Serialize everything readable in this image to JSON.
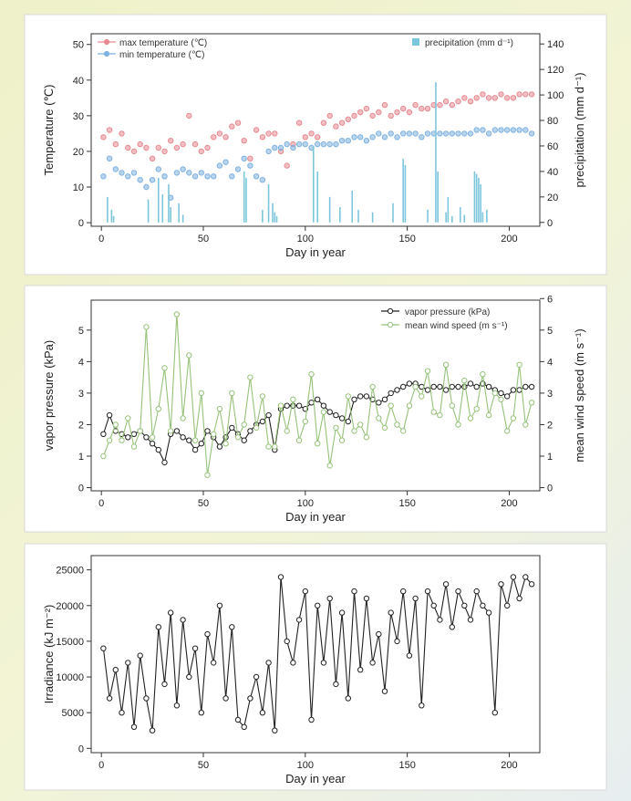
{
  "colors": {
    "max_temperature": "#e78a93",
    "min_temperature": "#7fb2e0",
    "precipitation": "#7cc6dc",
    "vapor_pressure": "#222222",
    "wind_speed": "#97c27a",
    "irradiance": "#222222",
    "panel_bg": "#ffffff"
  },
  "chart_data": [
    {
      "type": "line",
      "xlabel": "Day in year",
      "ylabel": "Temperature (℃)",
      "ylabel_right": "precipitation (mm d⁻¹)",
      "xlim": [
        -5,
        215
      ],
      "ylim": [
        -1,
        53
      ],
      "ylim_right": [
        -3,
        148
      ],
      "x_ticks": [
        0,
        50,
        100,
        150,
        200
      ],
      "y_ticks": [
        0,
        10,
        20,
        30,
        40,
        50
      ],
      "y_ticks_right": [
        0,
        20,
        40,
        60,
        80,
        100,
        120,
        140
      ],
      "legend": {
        "left": [
          "max temperature (℃)",
          "min temperature (℃)"
        ],
        "right": [
          "precipitation (mm d⁻¹)"
        ]
      },
      "series": [
        {
          "name": "max temperature (℃)",
          "axis": "left",
          "style": "points",
          "x_start": 1,
          "x_step": 3,
          "values": [
            24,
            26,
            22,
            25,
            21,
            20,
            22,
            21,
            18,
            21,
            20,
            23,
            21,
            22,
            30,
            22,
            20,
            21,
            24,
            25,
            24,
            27,
            28,
            23,
            18,
            26,
            24,
            25,
            25,
            20,
            16,
            22,
            28,
            24,
            25,
            24,
            28,
            30,
            27,
            28,
            29,
            30,
            31,
            32,
            30,
            31,
            33,
            30,
            31,
            32,
            31,
            33,
            32,
            32,
            33,
            33,
            34,
            33,
            34,
            35,
            34,
            35,
            36,
            35,
            35,
            36,
            35,
            35,
            36,
            36,
            36
          ]
        },
        {
          "name": "min temperature (℃)",
          "axis": "left",
          "style": "points",
          "x_start": 1,
          "x_step": 3,
          "values": [
            13,
            18,
            15,
            14,
            13,
            14,
            12,
            10,
            12,
            15,
            13,
            7,
            14,
            15,
            14,
            13,
            14,
            13,
            13,
            16,
            17,
            13,
            15,
            18,
            16,
            13,
            12,
            20,
            21,
            21,
            22,
            21,
            22,
            22,
            21,
            22,
            22,
            22,
            22,
            23,
            23,
            24,
            24,
            23,
            24,
            25,
            24,
            25,
            24,
            25,
            25,
            25,
            24,
            25,
            25,
            25,
            25,
            25,
            25,
            25,
            25,
            26,
            26,
            25,
            26,
            26,
            26,
            26,
            26,
            26,
            25
          ]
        },
        {
          "name": "precipitation (mm d⁻¹)",
          "axis": "right",
          "style": "bars",
          "x": [
            3,
            5,
            6,
            23,
            28,
            30,
            33,
            34,
            38,
            40,
            70,
            71,
            79,
            82,
            84,
            85,
            86,
            104,
            106,
            112,
            117,
            123,
            126,
            133,
            143,
            148,
            149,
            160,
            164,
            165,
            169,
            170,
            172,
            176,
            178,
            183,
            184,
            185,
            186,
            187,
            189
          ],
          "values": [
            20,
            10,
            5,
            18,
            35,
            22,
            30,
            12,
            15,
            6,
            40,
            35,
            10,
            30,
            15,
            8,
            5,
            60,
            40,
            20,
            12,
            25,
            10,
            8,
            15,
            50,
            45,
            10,
            110,
            40,
            8,
            20,
            5,
            12,
            6,
            40,
            38,
            35,
            30,
            8,
            10
          ]
        }
      ]
    },
    {
      "type": "line",
      "xlabel": "Day in year",
      "ylabel": "vapor pressure (kPa)",
      "ylabel_right": "mean wind speed (m s⁻¹)",
      "xlim": [
        -5,
        215
      ],
      "ylim": [
        -0.1,
        5.95
      ],
      "ylim_right": [
        -0.1,
        5.95
      ],
      "x_ticks": [
        0,
        50,
        100,
        150,
        200
      ],
      "y_ticks": [
        0,
        1,
        2,
        3,
        4,
        5
      ],
      "y_ticks_right": [
        0,
        1,
        2,
        3,
        4,
        5,
        6
      ],
      "legend": {
        "right": [
          "vapor pressure (kPa)",
          "mean wind speed (m s⁻¹)"
        ]
      },
      "series": [
        {
          "name": "vapor pressure (kPa)",
          "axis": "left",
          "style": "line-points",
          "x_start": 1,
          "x_step": 3,
          "values": [
            1.7,
            2.3,
            1.8,
            1.7,
            1.6,
            1.7,
            1.8,
            1.6,
            1.4,
            1.2,
            0.8,
            1.7,
            1.8,
            1.6,
            1.5,
            1.2,
            1.4,
            1.8,
            1.6,
            1.3,
            1.6,
            1.9,
            1.7,
            1.5,
            1.8,
            2.0,
            2.1,
            2.3,
            1.2,
            2.5,
            2.6,
            2.6,
            2.6,
            2.5,
            2.7,
            2.8,
            2.6,
            2.4,
            2.3,
            2.2,
            2.1,
            2.8,
            2.9,
            2.9,
            2.8,
            2.7,
            2.8,
            3.0,
            3.1,
            3.2,
            3.3,
            3.3,
            3.2,
            3.1,
            3.2,
            3.2,
            3.1,
            3.2,
            3.2,
            3.2,
            3.3,
            3.2,
            3.3,
            3.2,
            3.1,
            3.0,
            2.9,
            3.1,
            3.1,
            3.2,
            3.2
          ]
        },
        {
          "name": "mean wind speed (m s⁻¹)",
          "axis": "right",
          "style": "line-points",
          "x_start": 1,
          "x_step": 3,
          "values": [
            1.0,
            1.5,
            2.0,
            1.5,
            2.2,
            1.3,
            1.8,
            5.1,
            1.6,
            2.5,
            3.8,
            1.8,
            5.5,
            2.2,
            4.2,
            1.5,
            3.0,
            0.4,
            1.7,
            2.5,
            1.4,
            3.0,
            1.6,
            2.0,
            3.5,
            1.9,
            2.9,
            1.3,
            1.3,
            2.6,
            1.8,
            2.8,
            1.5,
            2.1,
            3.6,
            1.4,
            2.4,
            0.7,
            1.9,
            1.5,
            2.9,
            1.8,
            2.0,
            1.6,
            3.2,
            2.2,
            1.9,
            2.6,
            2.0,
            1.8,
            2.6,
            3.2,
            2.9,
            3.7,
            2.4,
            2.3,
            3.9,
            2.6,
            2.0,
            3.4,
            2.2,
            2.5,
            3.6,
            2.3,
            3.0,
            2.8,
            1.8,
            2.2,
            3.9,
            2.0,
            2.7
          ]
        }
      ]
    },
    {
      "type": "line",
      "xlabel": "Day in year",
      "ylabel": "Irradiance  (kJ m⁻²)",
      "xlim": [
        -5,
        215
      ],
      "ylim": [
        -600,
        27000
      ],
      "x_ticks": [
        0,
        50,
        100,
        150,
        200
      ],
      "y_ticks": [
        0,
        5000,
        10000,
        15000,
        20000,
        25000
      ],
      "series": [
        {
          "name": "Irradiance",
          "axis": "left",
          "style": "line-points",
          "x_start": 1,
          "x_step": 3,
          "values": [
            14000,
            7000,
            11000,
            5000,
            12000,
            3000,
            13000,
            7000,
            2500,
            17000,
            9000,
            19000,
            6000,
            18000,
            10000,
            14000,
            5000,
            16000,
            12000,
            20000,
            7000,
            17000,
            4000,
            3000,
            7000,
            10000,
            5000,
            12000,
            2500,
            24000,
            15000,
            12000,
            18000,
            22000,
            4000,
            20000,
            12000,
            21000,
            9000,
            19000,
            7000,
            22000,
            11000,
            21000,
            12000,
            16000,
            8000,
            19000,
            15000,
            22000,
            13000,
            21000,
            6000,
            22000,
            20000,
            18000,
            23000,
            17000,
            22000,
            20000,
            18000,
            22000,
            20000,
            19000,
            5000,
            23000,
            20000,
            24000,
            21000,
            24000,
            23000
          ]
        }
      ]
    }
  ]
}
